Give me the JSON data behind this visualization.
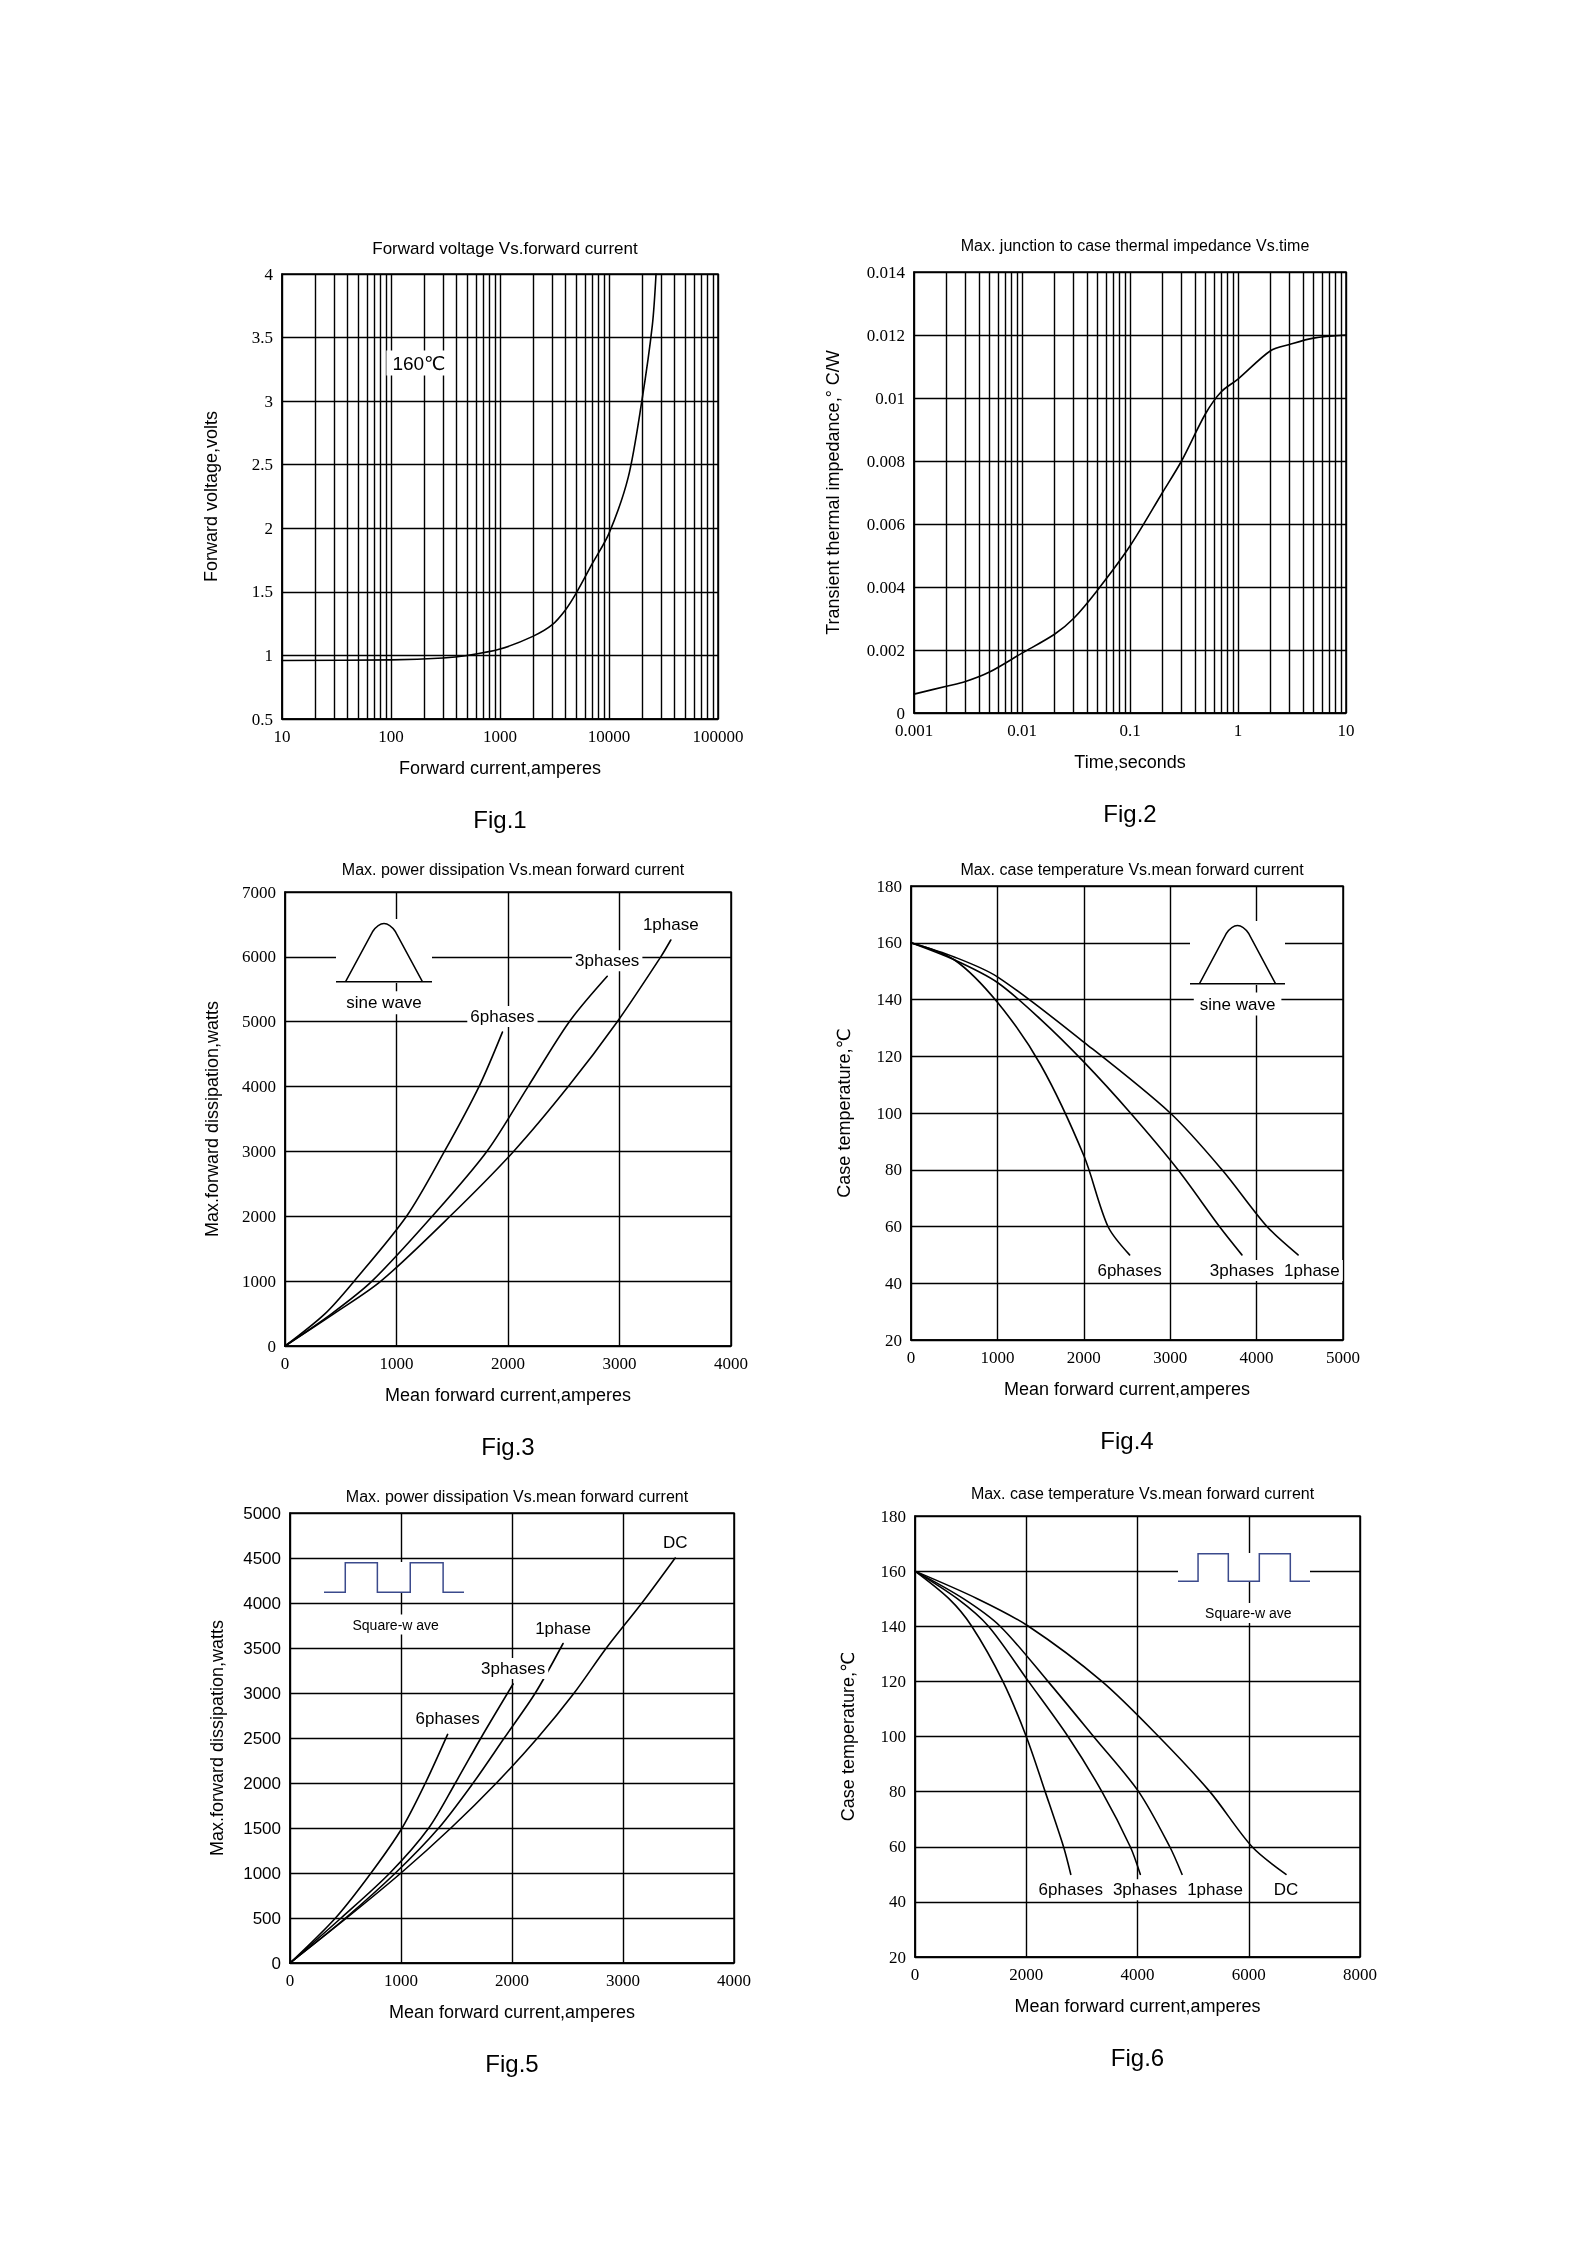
{
  "chart_data": [
    {
      "type": "line",
      "title": "Forward voltage Vs.forward current",
      "xlabel": "Forward current,amperes",
      "ylabel": "Forward voltage,volts",
      "annotations": [
        "160℃",
        "Fig.1"
      ],
      "log": "x",
      "x": [
        10,
        100,
        300,
        500,
        1000,
        2000,
        3000,
        4000,
        5000,
        7000,
        10000,
        15000,
        20000,
        25000,
        27000
      ],
      "values": [
        0.96,
        0.965,
        0.98,
        1.0,
        1.05,
        1.15,
        1.24,
        1.36,
        1.49,
        1.72,
        1.96,
        2.4,
        3.0,
        3.6,
        4.0
      ],
      "color": "#000000",
      "xlim": [
        10,
        100000
      ],
      "xticks": [
        10,
        {
          "value": 20,
          "label": null
        },
        {
          "value": 30,
          "label": null
        },
        {
          "value": 40,
          "label": null
        },
        {
          "value": 50,
          "label": null
        },
        {
          "value": 60,
          "label": null
        },
        {
          "value": 70,
          "label": null
        },
        {
          "value": 80,
          "label": null
        },
        {
          "value": 90,
          "label": null
        },
        100,
        {
          "value": 200,
          "label": null
        },
        {
          "value": 300,
          "label": null
        },
        {
          "value": 400,
          "label": null
        },
        {
          "value": 500,
          "label": null
        },
        {
          "value": 600,
          "label": null
        },
        {
          "value": 700,
          "label": null
        },
        {
          "value": 800,
          "label": null
        },
        {
          "value": 900,
          "label": null
        },
        1000,
        {
          "value": 2000,
          "label": null
        },
        {
          "value": 3000,
          "label": null
        },
        {
          "value": 4000,
          "label": null
        },
        {
          "value": 5000,
          "label": null
        },
        {
          "value": 6000,
          "label": null
        },
        {
          "value": 7000,
          "label": null
        },
        {
          "value": 8000,
          "label": null
        },
        {
          "value": 9000,
          "label": null
        },
        10000,
        {
          "value": 20000,
          "label": null
        },
        {
          "value": 30000,
          "label": null
        },
        {
          "value": 40000,
          "label": null
        },
        {
          "value": 50000,
          "label": null
        },
        {
          "value": 60000,
          "label": null
        },
        {
          "value": 70000,
          "label": null
        },
        {
          "value": 80000,
          "label": null
        },
        {
          "value": 90000,
          "label": null
        },
        100000
      ],
      "ylim": [
        0.5,
        4
      ],
      "yticks": [
        0.5,
        1,
        1.5,
        2,
        2.5,
        3,
        3.5,
        4
      ],
      "grid": true,
      "marker": "none"
    },
    {
      "type": "line",
      "title": "Max. junction to case thermal impedance Vs.time",
      "xlabel": "Time,seconds",
      "ylabel": "Transient thermal impedance,° C/W",
      "annotations": [
        "Fig.2"
      ],
      "log": "x",
      "x": [
        0.001,
        0.002,
        0.003,
        0.005,
        0.01,
        0.02,
        0.03,
        0.05,
        0.1,
        0.2,
        0.3,
        0.5,
        0.7,
        1,
        2,
        3,
        5,
        10
      ],
      "values": [
        0.0006,
        0.00085,
        0.001,
        0.0013,
        0.0019,
        0.0025,
        0.003,
        0.0039,
        0.0053,
        0.007,
        0.008,
        0.0095,
        0.0102,
        0.0106,
        0.0115,
        0.0117,
        0.0119,
        0.012
      ],
      "color": "#000000",
      "xlim": [
        0.001,
        10
      ],
      "xticks": [
        0.001,
        {
          "value": 0.002,
          "label": null
        },
        {
          "value": 0.003,
          "label": null
        },
        {
          "value": 0.004,
          "label": null
        },
        {
          "value": 0.005,
          "label": null
        },
        {
          "value": 0.006,
          "label": null
        },
        {
          "value": 0.007,
          "label": null
        },
        {
          "value": 0.008,
          "label": null
        },
        {
          "value": 0.009,
          "label": null
        },
        0.01,
        {
          "value": 0.02,
          "label": null
        },
        {
          "value": 0.03,
          "label": null
        },
        {
          "value": 0.04,
          "label": null
        },
        {
          "value": 0.05,
          "label": null
        },
        {
          "value": 0.06,
          "label": null
        },
        {
          "value": 0.07,
          "label": null
        },
        {
          "value": 0.08,
          "label": null
        },
        {
          "value": 0.09,
          "label": null
        },
        0.1,
        {
          "value": 0.2,
          "label": null
        },
        {
          "value": 0.3,
          "label": null
        },
        {
          "value": 0.4,
          "label": null
        },
        {
          "value": 0.5,
          "label": null
        },
        {
          "value": 0.6,
          "label": null
        },
        {
          "value": 0.7,
          "label": null
        },
        {
          "value": 0.8,
          "label": null
        },
        {
          "value": 0.9,
          "label": null
        },
        1,
        {
          "value": 2,
          "label": null
        },
        {
          "value": 3,
          "label": null
        },
        {
          "value": 4,
          "label": null
        },
        {
          "value": 5,
          "label": null
        },
        {
          "value": 6,
          "label": null
        },
        {
          "value": 7,
          "label": null
        },
        {
          "value": 8,
          "label": null
        },
        {
          "value": 9,
          "label": null
        },
        10
      ],
      "ylim": [
        0,
        0.014
      ],
      "yticks": [
        0,
        0.002,
        0.004,
        0.006,
        0.008,
        0.01,
        0.012,
        0.014
      ],
      "grid": true,
      "marker": "none"
    },
    {
      "type": "line",
      "title": "Max. power dissipation Vs.mean forward current",
      "xlabel": "Mean forward current,amperes",
      "ylabel": "Max.forward dissipation,watts",
      "annotations": [
        "sine wave",
        "Fig.3"
      ],
      "series": [
        {
          "name": "6phases",
          "color": "#000000",
          "x": [
            0,
            360,
            620,
            1090,
            1430,
            1740,
            1950
          ],
          "values": [
            0,
            500,
            1000,
            2000,
            3000,
            4000,
            4840
          ]
        },
        {
          "name": "3phases",
          "color": "#000000",
          "x": [
            0,
            420,
            780,
            1320,
            1810,
            2180,
            2550,
            2890
          ],
          "values": [
            0,
            500,
            1000,
            2000,
            3000,
            4000,
            5000,
            5700
          ]
        },
        {
          "name": "1phase",
          "color": "#000000",
          "x": [
            0,
            440,
            860,
            1480,
            2050,
            2540,
            2980,
            3370,
            3460
          ],
          "values": [
            0,
            500,
            1000,
            2000,
            3000,
            4000,
            5000,
            6000,
            6260
          ]
        }
      ],
      "xlim": [
        0,
        4000
      ],
      "xticks": [
        0,
        1000,
        2000,
        3000,
        4000
      ],
      "ylim": [
        0,
        7000
      ],
      "yticks": [
        0,
        1000,
        2000,
        3000,
        4000,
        5000,
        6000,
        7000
      ],
      "grid": true,
      "marker": "none"
    },
    {
      "type": "line",
      "title": "Max. case temperature Vs.mean forward current",
      "xlabel": "Mean forward current,amperes",
      "ylabel": "Case temperature,℃",
      "annotations": [
        "sine wave",
        "Fig.4"
      ],
      "series": [
        {
          "name": "6phases",
          "color": "#000000",
          "x": [
            0,
            500,
            1000,
            1500,
            2000,
            2280,
            2530
          ],
          "values": [
            160,
            154,
            139,
            117,
            85,
            60,
            50
          ]
        },
        {
          "name": "3phases",
          "color": "#000000",
          "x": [
            0,
            500,
            1000,
            1500,
            2000,
            2540,
            3090,
            3570,
            3830
          ],
          "values": [
            160,
            154,
            146,
            133,
            118,
            100,
            80,
            60,
            50
          ]
        },
        {
          "name": "1phase",
          "color": "#000000",
          "x": [
            0,
            500,
            1000,
            2000,
            3000,
            3600,
            4120,
            4480
          ],
          "values": [
            160,
            155,
            148,
            125,
            100,
            80,
            60,
            50
          ]
        }
      ],
      "xlim": [
        0,
        5000
      ],
      "xticks": [
        0,
        1000,
        2000,
        3000,
        4000,
        5000
      ],
      "ylim": [
        20,
        180
      ],
      "yticks": [
        20,
        40,
        60,
        80,
        100,
        120,
        140,
        160,
        180
      ],
      "grid": true,
      "marker": "none"
    },
    {
      "type": "line",
      "title": "Max. power dissipation Vs.mean forward current",
      "xlabel": "Mean forward current,amperes",
      "ylabel": "Max.forward dissipation,watts",
      "annotations": [
        "Square-w ave",
        "Fig.5"
      ],
      "series": [
        {
          "name": "6phases",
          "color": "#000000",
          "x": [
            0,
            410,
            730,
            1010,
            1220,
            1420
          ],
          "values": [
            0,
            500,
            1000,
            1500,
            2000,
            2540
          ]
        },
        {
          "name": "3phases",
          "color": "#000000",
          "x": [
            0,
            460,
            900,
            1250,
            1490,
            1720,
            2010
          ],
          "values": [
            0,
            500,
            1000,
            1500,
            2000,
            2500,
            3100
          ]
        },
        {
          "name": "1phase",
          "color": "#000000",
          "x": [
            0,
            500,
            950,
            1340,
            1650,
            1930,
            2210,
            2460
          ],
          "values": [
            0,
            500,
            1000,
            1500,
            2000,
            2500,
            3000,
            3550
          ]
        },
        {
          "name": "DC",
          "color": "#000000",
          "x": [
            0,
            510,
            1000,
            1450,
            1860,
            2230,
            2560,
            2850,
            3170,
            3470
          ],
          "values": [
            0,
            500,
            1000,
            1500,
            2000,
            2500,
            3000,
            3500,
            4000,
            4500
          ]
        }
      ],
      "xlim": [
        0,
        4000
      ],
      "xticks": [
        0,
        1000,
        2000,
        3000,
        4000
      ],
      "ylim": [
        0,
        5000
      ],
      "yticks": [
        0,
        500,
        1000,
        1500,
        2000,
        2500,
        3000,
        3500,
        4000,
        4500,
        5000
      ],
      "grid": true,
      "marker": "none"
    },
    {
      "type": "line",
      "title": "Max. case temperature Vs.mean forward current",
      "xlabel": "Mean forward current,amperes",
      "ylabel": "Case temperature,℃",
      "annotations": [
        "Square-w ave",
        "Fig.6"
      ],
      "series": [
        {
          "name": "6phases",
          "color": "#000000",
          "x": [
            0,
            610,
            1020,
            1580,
            2000,
            2340,
            2670,
            2800
          ],
          "values": [
            160,
            150,
            140,
            120,
            100,
            80,
            60,
            50
          ]
        },
        {
          "name": "3phases",
          "color": "#000000",
          "x": [
            0,
            760,
            1320,
            2040,
            2750,
            3360,
            3870,
            4050
          ],
          "values": [
            160,
            150,
            140,
            120,
            100,
            80,
            60,
            50
          ]
        },
        {
          "name": "1phase",
          "color": "#000000",
          "x": [
            0,
            870,
            1530,
            2390,
            3210,
            4020,
            4580,
            4800
          ],
          "values": [
            160,
            150,
            140,
            120,
            100,
            80,
            60,
            50
          ]
        },
        {
          "name": "DC",
          "color": "#000000",
          "x": [
            0,
            1120,
            2040,
            3360,
            4380,
            5300,
            6060,
            6670
          ],
          "values": [
            160,
            150,
            140,
            120,
            100,
            80,
            60,
            50
          ]
        }
      ],
      "xlim": [
        0,
        8000
      ],
      "xticks": [
        0,
        2000,
        4000,
        6000,
        8000
      ],
      "ylim": [
        20,
        180
      ],
      "yticks": [
        20,
        40,
        60,
        80,
        100,
        120,
        140,
        160,
        180
      ],
      "grid": true,
      "marker": "none"
    }
  ]
}
